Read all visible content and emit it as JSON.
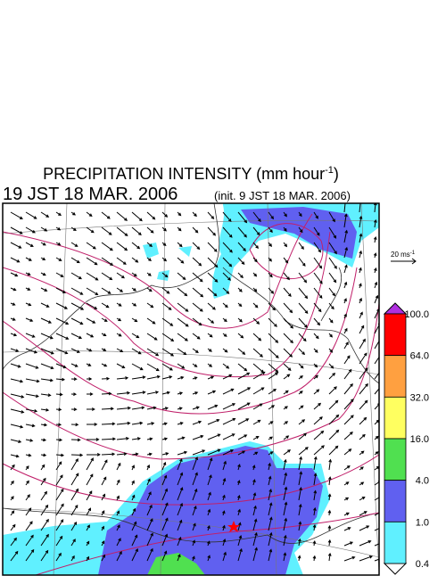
{
  "header": {
    "title": "PRECIPITATION INTENSITY (mm hour",
    "title_exponent": "-1",
    "title_close": ")",
    "valid_time": "19 JST 18 MAR. 2006",
    "init_time": "(init. 9 JST 18 MAR. 2006)"
  },
  "wind_scale": {
    "label": "20 ms",
    "exponent": "-1"
  },
  "colorbar": {
    "labels": [
      "100.0",
      "64.0",
      "32.0",
      "16.0",
      "4.0",
      "1.0",
      "0.4"
    ],
    "colors": [
      "#ff0000",
      "#ffa040",
      "#ffff60",
      "#50e050",
      "#6060f0",
      "#60f0ff"
    ],
    "over_color": "#b030e0",
    "under_color": "#ffffff"
  }
}
